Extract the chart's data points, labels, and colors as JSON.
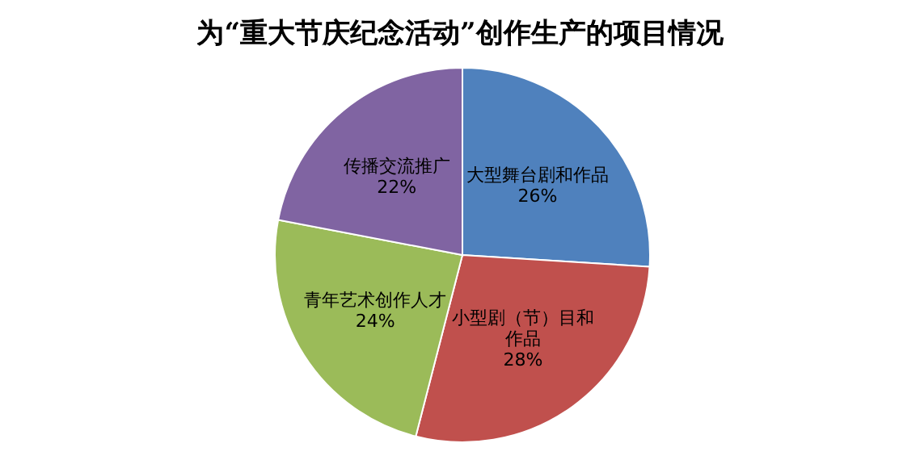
{
  "chart_data": {
    "type": "pie",
    "title": "为“重大节庆纪念活动”创作生产的项目情况",
    "categories": [
      "大型舞台剧和作品",
      "小型剧（节）目和作品",
      "青年艺术创作人才",
      "传播交流推广"
    ],
    "values": [
      26,
      28,
      24,
      22
    ],
    "value_labels": [
      "26%",
      "28%",
      "24%",
      "22%"
    ],
    "colors": [
      "#4f81bd",
      "#c0504d",
      "#9bbb59",
      "#8064a2"
    ]
  }
}
